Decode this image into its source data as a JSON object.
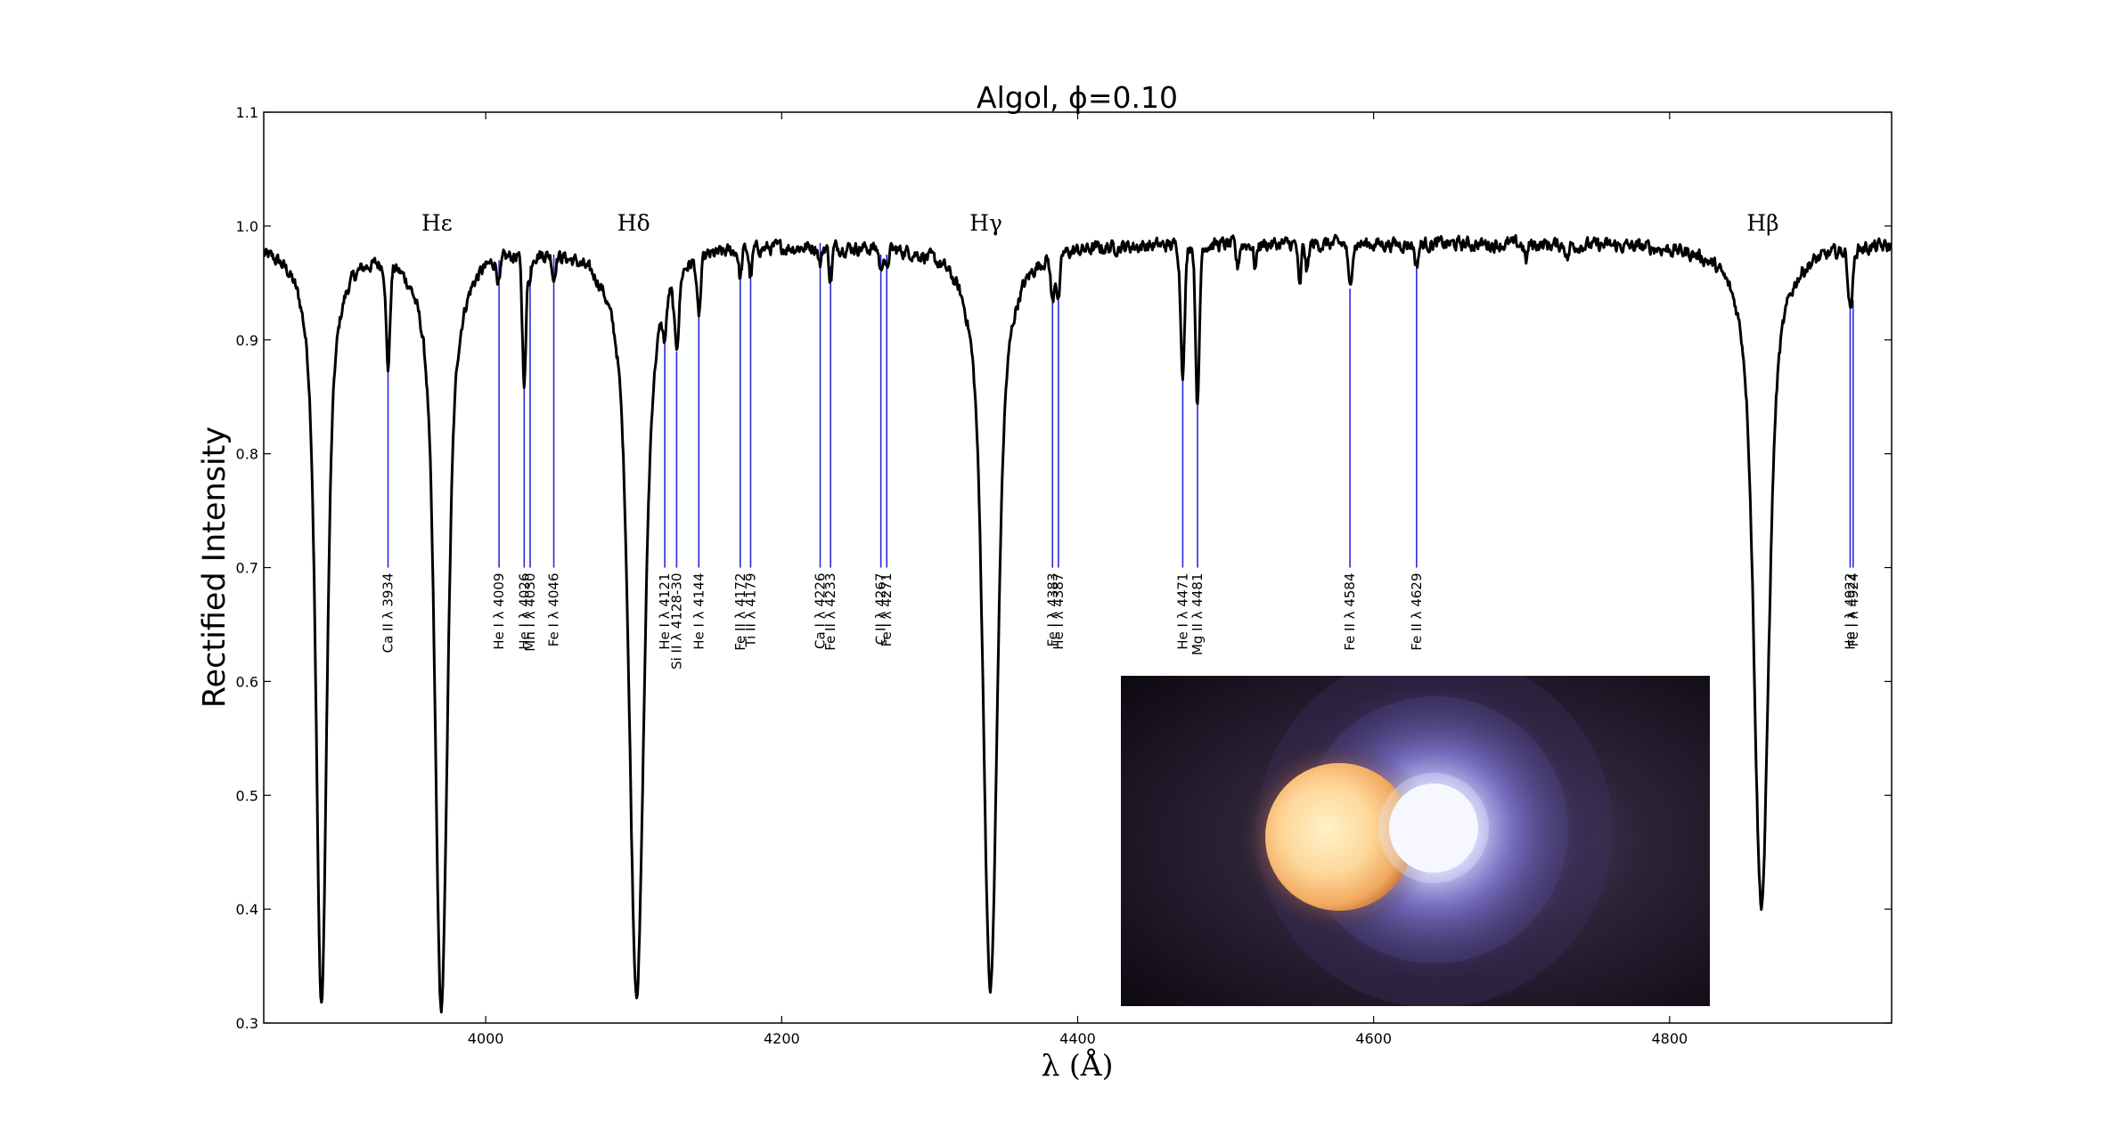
{
  "chart_data": {
    "type": "line",
    "title": "Algol, ϕ=0.10",
    "xlabel": "λ (Å)",
    "ylabel": "Rectified Intensity",
    "xlim": [
      3850,
      4950
    ],
    "ylim": [
      0.3,
      1.1
    ],
    "x_ticks": [
      4000,
      4200,
      4400,
      4600,
      4800
    ],
    "y_ticks": [
      0.3,
      0.4,
      0.5,
      0.6,
      0.7,
      0.8,
      0.9,
      1.0,
      1.1
    ],
    "colors": {
      "spectrum": "#000000",
      "line_markers": "#2a2ad8"
    },
    "continuum": 0.985,
    "noise_amplitude": 0.012,
    "balmer_lines": [
      {
        "label": "Hε",
        "center": 3970,
        "depth": 0.67,
        "width": 7.5,
        "label_x": 3967,
        "label_y": 1.0
      },
      {
        "label": "Hδ",
        "center": 4102,
        "depth": 0.655,
        "width": 9.0,
        "label_x": 4100,
        "label_y": 1.0
      },
      {
        "label": "Hγ",
        "center": 4341,
        "depth": 0.655,
        "width": 8.5,
        "label_x": 4338,
        "label_y": 1.0
      },
      {
        "label": "Hβ",
        "center": 4862,
        "depth": 0.58,
        "width": 9.0,
        "label_x": 4863,
        "label_y": 1.0
      }
    ],
    "extra_absorption": [
      {
        "center": 3889,
        "depth": 0.665,
        "width": 6.5
      }
    ],
    "line_markers": [
      {
        "wavelength": 3934,
        "label": "Ca II λ 3934",
        "top": 0.9,
        "depth": 0.09,
        "width": 1.3
      },
      {
        "wavelength": 4009,
        "label": "He I λ 4009",
        "top": 0.97,
        "depth": 0.02,
        "width": 1.2
      },
      {
        "wavelength": 4026,
        "label": "He I λ 4026",
        "top": 0.87,
        "depth": 0.11,
        "width": 1.3
      },
      {
        "wavelength": 4030,
        "label": "Mn I λ 4030",
        "top": 0.965,
        "depth": 0.02,
        "width": 1.0
      },
      {
        "wavelength": 4046,
        "label": "Fe I λ 4046",
        "top": 0.975,
        "depth": 0.02,
        "width": 1.0
      },
      {
        "wavelength": 4121,
        "label": "He I λ 4121",
        "top": 0.9,
        "depth": 0.03,
        "width": 1.2
      },
      {
        "wavelength": 4129,
        "label": "Si II λ 4128-30",
        "top": 0.89,
        "depth": 0.06,
        "width": 1.6
      },
      {
        "wavelength": 4144,
        "label": "He I λ 4144",
        "top": 0.93,
        "depth": 0.05,
        "width": 1.3
      },
      {
        "wavelength": 4172,
        "label": "Fe II λ 4172",
        "top": 0.955,
        "depth": 0.025,
        "width": 1.0
      },
      {
        "wavelength": 4179,
        "label": "Ti II λ 4179",
        "top": 0.955,
        "depth": 0.025,
        "width": 1.0
      },
      {
        "wavelength": 4226,
        "label": "Ca I λ 4226",
        "top": 0.985,
        "depth": 0.015,
        "width": 1.0
      },
      {
        "wavelength": 4233,
        "label": "Fe II λ 4233",
        "top": 0.965,
        "depth": 0.03,
        "width": 1.0
      },
      {
        "wavelength": 4267,
        "label": "C II λ 4267",
        "top": 0.975,
        "depth": 0.02,
        "width": 1.0
      },
      {
        "wavelength": 4271,
        "label": "Fe I λ 4271",
        "top": 0.975,
        "depth": 0.02,
        "width": 1.0
      },
      {
        "wavelength": 4383,
        "label": "Fe I λ 4383",
        "top": 0.94,
        "depth": 0.04,
        "width": 1.2
      },
      {
        "wavelength": 4387,
        "label": "He I λ 4387",
        "top": 0.94,
        "depth": 0.04,
        "width": 1.2
      },
      {
        "wavelength": 4471,
        "label": "He I λ 4471",
        "top": 0.88,
        "depth": 0.11,
        "width": 1.4
      },
      {
        "wavelength": 4481,
        "label": "Mg II λ 4481",
        "top": 0.85,
        "depth": 0.14,
        "width": 1.3
      },
      {
        "wavelength": 4584,
        "label": "Fe II λ 4584",
        "top": 0.945,
        "depth": 0.04,
        "width": 1.2
      },
      {
        "wavelength": 4629,
        "label": "Fe II λ 4629",
        "top": 0.97,
        "depth": 0.02,
        "width": 1.1
      },
      {
        "wavelength": 4922,
        "label": "He I λ 4922",
        "top": 0.935,
        "depth": 0.05,
        "width": 1.4
      },
      {
        "wavelength": 4924,
        "label": "Fe I λ 4924",
        "top": 0.935,
        "depth": 0.01,
        "width": 1.0
      }
    ],
    "marker_bottom": 0.7,
    "minor_features": [
      {
        "center": 4550,
        "depth": 0.04,
        "width": 1.0
      },
      {
        "center": 4520,
        "depth": 0.02,
        "width": 1.0
      },
      {
        "center": 4508,
        "depth": 0.02,
        "width": 1.0
      },
      {
        "center": 4555,
        "depth": 0.025,
        "width": 1.0
      },
      {
        "center": 4703,
        "depth": 0.015,
        "width": 1.0
      },
      {
        "center": 4731,
        "depth": 0.012,
        "width": 1.0
      }
    ],
    "grid": false
  },
  "inset": {
    "description_icon": "binary-star-illustration"
  }
}
